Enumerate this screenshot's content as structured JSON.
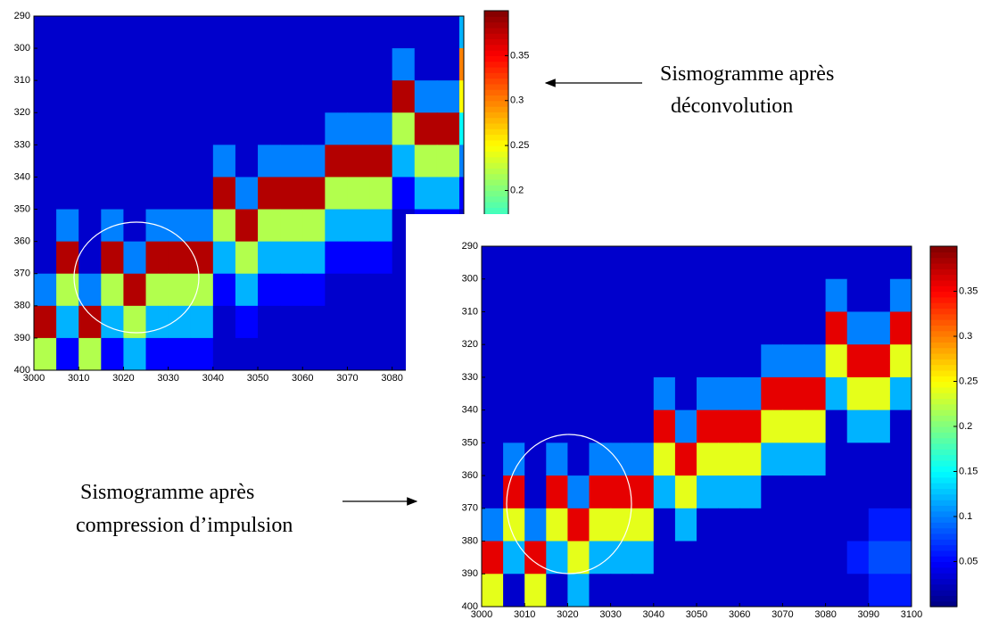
{
  "chart_data": [
    {
      "type": "heatmap",
      "colormap": "jet",
      "y_inverted": true,
      "annotation": [
        "Sismogramme après",
        "déconvolution"
      ],
      "xbins": [
        3000,
        3005,
        3010,
        3015,
        3020,
        3025,
        3030,
        3035,
        3040,
        3045,
        3050,
        3055,
        3060,
        3065,
        3070,
        3075,
        3080,
        3085,
        3090,
        3095,
        3100
      ],
      "ybins": [
        290,
        300,
        310,
        320,
        330,
        340,
        350,
        360,
        370,
        380,
        390,
        400
      ],
      "xlim": [
        3000,
        3096
      ],
      "ylim": [
        290,
        400
      ],
      "clim": [
        0,
        0.4
      ],
      "xticks": [
        3000,
        3010,
        3020,
        3030,
        3040,
        3050,
        3060,
        3070,
        3080
      ],
      "yticks": [
        290,
        300,
        310,
        320,
        330,
        340,
        350,
        360,
        370,
        380,
        390,
        400
      ],
      "cticks": [
        0.2,
        0.25,
        0.3,
        0.35
      ],
      "z": [
        [
          0.03,
          0.03,
          0.03,
          0.03,
          0.03,
          0.03,
          0.03,
          0.03,
          0.03,
          0.03,
          0.03,
          0.03,
          0.03,
          0.03,
          0.03,
          0.03,
          0.03,
          0.03,
          0.03,
          0.12
        ],
        [
          0.03,
          0.03,
          0.03,
          0.03,
          0.03,
          0.03,
          0.03,
          0.03,
          0.03,
          0.03,
          0.03,
          0.03,
          0.03,
          0.03,
          0.03,
          0.03,
          0.1,
          0.03,
          0.03,
          0.3
        ],
        [
          0.03,
          0.03,
          0.03,
          0.03,
          0.03,
          0.03,
          0.03,
          0.03,
          0.03,
          0.03,
          0.03,
          0.03,
          0.03,
          0.03,
          0.03,
          0.03,
          0.38,
          0.1,
          0.1,
          0.25
        ],
        [
          0.03,
          0.03,
          0.03,
          0.03,
          0.03,
          0.03,
          0.03,
          0.03,
          0.03,
          0.03,
          0.03,
          0.03,
          0.03,
          0.1,
          0.1,
          0.1,
          0.22,
          0.38,
          0.38,
          0.15
        ],
        [
          0.03,
          0.03,
          0.03,
          0.03,
          0.03,
          0.03,
          0.03,
          0.03,
          0.1,
          0.03,
          0.1,
          0.1,
          0.1,
          0.38,
          0.38,
          0.38,
          0.12,
          0.22,
          0.22,
          0.1
        ],
        [
          0.03,
          0.03,
          0.03,
          0.03,
          0.03,
          0.03,
          0.03,
          0.03,
          0.38,
          0.1,
          0.38,
          0.38,
          0.38,
          0.22,
          0.22,
          0.22,
          0.05,
          0.12,
          0.12,
          0.05
        ],
        [
          0.03,
          0.1,
          0.03,
          0.1,
          0.03,
          0.1,
          0.1,
          0.1,
          0.22,
          0.38,
          0.22,
          0.22,
          0.22,
          0.12,
          0.12,
          0.12,
          0.03,
          0.05,
          0.05,
          0.03
        ],
        [
          0.03,
          0.38,
          0.03,
          0.38,
          0.1,
          0.38,
          0.38,
          0.38,
          0.12,
          0.22,
          0.12,
          0.12,
          0.12,
          0.05,
          0.05,
          0.05,
          0.03,
          0.03,
          0.03,
          0.03
        ],
        [
          0.1,
          0.22,
          0.1,
          0.22,
          0.38,
          0.22,
          0.22,
          0.22,
          0.05,
          0.12,
          0.05,
          0.05,
          0.05,
          0.03,
          0.03,
          0.03,
          0.03,
          0.03,
          0.03,
          0.03
        ],
        [
          0.38,
          0.12,
          0.38,
          0.12,
          0.22,
          0.12,
          0.12,
          0.12,
          0.03,
          0.05,
          0.03,
          0.03,
          0.03,
          0.03,
          0.03,
          0.03,
          0.03,
          0.03,
          0.03,
          0.03
        ],
        [
          0.22,
          0.05,
          0.22,
          0.05,
          0.12,
          0.05,
          0.05,
          0.05,
          0.03,
          0.03,
          0.03,
          0.03,
          0.03,
          0.03,
          0.03,
          0.03,
          0.03,
          0.03,
          0.03,
          0.03
        ]
      ]
    },
    {
      "type": "heatmap",
      "colormap": "jet",
      "y_inverted": true,
      "annotation": [
        "Sismogramme après",
        "compression d’impulsion"
      ],
      "xbins": [
        3000,
        3005,
        3010,
        3015,
        3020,
        3025,
        3030,
        3035,
        3040,
        3045,
        3050,
        3055,
        3060,
        3065,
        3070,
        3075,
        3080,
        3085,
        3090,
        3095,
        3100
      ],
      "ybins": [
        290,
        300,
        310,
        320,
        330,
        340,
        350,
        360,
        370,
        380,
        390,
        400
      ],
      "xlim": [
        3000,
        3100
      ],
      "ylim": [
        290,
        400
      ],
      "clim": [
        0,
        0.4
      ],
      "xticks": [
        3000,
        3010,
        3020,
        3030,
        3040,
        3050,
        3060,
        3070,
        3080,
        3090,
        3100
      ],
      "yticks": [
        290,
        300,
        310,
        320,
        330,
        340,
        350,
        360,
        370,
        380,
        390,
        400
      ],
      "cticks": [
        0.05,
        0.1,
        0.15,
        0.2,
        0.25,
        0.3,
        0.35
      ],
      "z": [
        [
          0.03,
          0.03,
          0.03,
          0.03,
          0.03,
          0.03,
          0.03,
          0.03,
          0.03,
          0.03,
          0.03,
          0.03,
          0.03,
          0.03,
          0.03,
          0.03,
          0.03,
          0.03,
          0.03,
          0.03
        ],
        [
          0.03,
          0.03,
          0.03,
          0.03,
          0.03,
          0.03,
          0.03,
          0.03,
          0.03,
          0.03,
          0.03,
          0.03,
          0.03,
          0.03,
          0.03,
          0.03,
          0.1,
          0.03,
          0.03,
          0.1
        ],
        [
          0.03,
          0.03,
          0.03,
          0.03,
          0.03,
          0.03,
          0.03,
          0.03,
          0.03,
          0.03,
          0.03,
          0.03,
          0.03,
          0.03,
          0.03,
          0.03,
          0.36,
          0.1,
          0.1,
          0.36
        ],
        [
          0.03,
          0.03,
          0.03,
          0.03,
          0.03,
          0.03,
          0.03,
          0.03,
          0.03,
          0.03,
          0.03,
          0.03,
          0.03,
          0.1,
          0.1,
          0.1,
          0.24,
          0.36,
          0.36,
          0.24
        ],
        [
          0.03,
          0.03,
          0.03,
          0.03,
          0.03,
          0.03,
          0.03,
          0.03,
          0.1,
          0.03,
          0.1,
          0.1,
          0.1,
          0.36,
          0.36,
          0.36,
          0.12,
          0.24,
          0.24,
          0.12
        ],
        [
          0.03,
          0.03,
          0.03,
          0.03,
          0.03,
          0.03,
          0.03,
          0.03,
          0.36,
          0.1,
          0.36,
          0.36,
          0.36,
          0.24,
          0.24,
          0.24,
          0.03,
          0.12,
          0.12,
          0.03
        ],
        [
          0.03,
          0.1,
          0.03,
          0.1,
          0.03,
          0.1,
          0.1,
          0.1,
          0.24,
          0.36,
          0.24,
          0.24,
          0.24,
          0.12,
          0.12,
          0.12,
          0.03,
          0.03,
          0.03,
          0.03
        ],
        [
          0.03,
          0.36,
          0.03,
          0.36,
          0.1,
          0.36,
          0.36,
          0.36,
          0.12,
          0.24,
          0.12,
          0.12,
          0.12,
          0.03,
          0.03,
          0.03,
          0.03,
          0.03,
          0.03,
          0.03
        ],
        [
          0.1,
          0.24,
          0.1,
          0.24,
          0.36,
          0.24,
          0.24,
          0.24,
          0.03,
          0.12,
          0.03,
          0.03,
          0.03,
          0.03,
          0.03,
          0.03,
          0.03,
          0.03,
          0.06,
          0.06
        ],
        [
          0.36,
          0.12,
          0.36,
          0.12,
          0.24,
          0.12,
          0.12,
          0.12,
          0.03,
          0.03,
          0.03,
          0.03,
          0.03,
          0.03,
          0.03,
          0.03,
          0.03,
          0.06,
          0.08,
          0.08
        ],
        [
          0.24,
          0.03,
          0.24,
          0.03,
          0.12,
          0.03,
          0.03,
          0.03,
          0.03,
          0.03,
          0.03,
          0.03,
          0.03,
          0.03,
          0.03,
          0.03,
          0.03,
          0.03,
          0.06,
          0.06
        ]
      ]
    }
  ]
}
